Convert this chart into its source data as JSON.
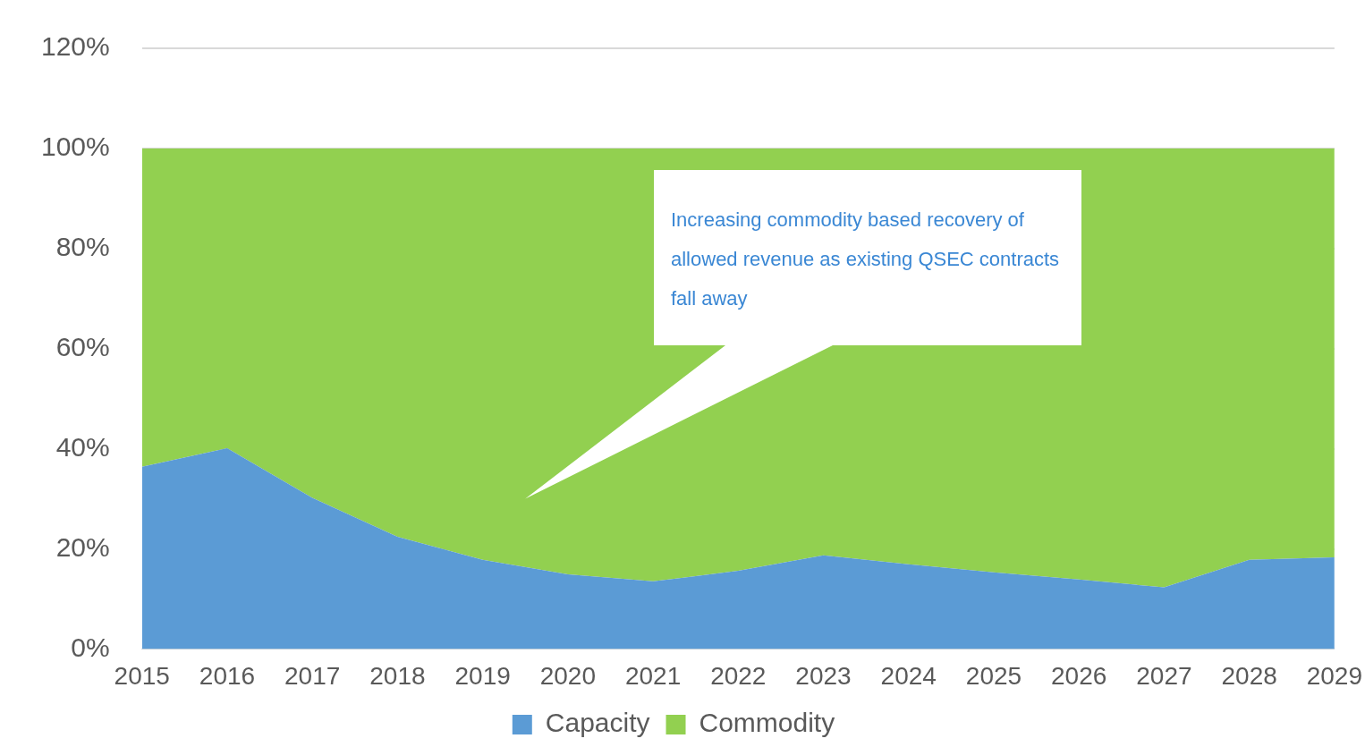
{
  "chart_data": {
    "type": "area",
    "stacked": true,
    "categories": [
      "2015",
      "2016",
      "2017",
      "2018",
      "2019",
      "2020",
      "2021",
      "2022",
      "2023",
      "2024",
      "2025",
      "2026",
      "2027",
      "2028",
      "2029"
    ],
    "series": [
      {
        "name": "Capacity",
        "color": "#5b9bd5",
        "values": [
          36.4,
          40.1,
          30.2,
          22.4,
          17.8,
          14.9,
          13.5,
          15.6,
          18.7,
          16.9,
          15.3,
          13.9,
          12.3,
          17.8,
          18.3
        ]
      },
      {
        "name": "Commodity",
        "color": "#92d050",
        "values": [
          63.6,
          59.9,
          69.8,
          77.6,
          82.2,
          85.1,
          86.5,
          84.4,
          81.3,
          83.1,
          84.7,
          86.1,
          87.7,
          82.2,
          81.7
        ]
      }
    ],
    "ylim": [
      0,
      120
    ],
    "yticks": [
      {
        "value": 0,
        "label": "0%"
      },
      {
        "value": 20,
        "label": "20%"
      },
      {
        "value": 40,
        "label": "40%"
      },
      {
        "value": 60,
        "label": "60%"
      },
      {
        "value": 80,
        "label": "80%"
      },
      {
        "value": 100,
        "label": "100%"
      },
      {
        "value": 120,
        "label": "120%"
      }
    ],
    "grid": "y",
    "legend": "bottom",
    "annotations": [
      "Increasing commodity based recovery of allowed revenue as existing QSEC contracts fall away"
    ]
  }
}
